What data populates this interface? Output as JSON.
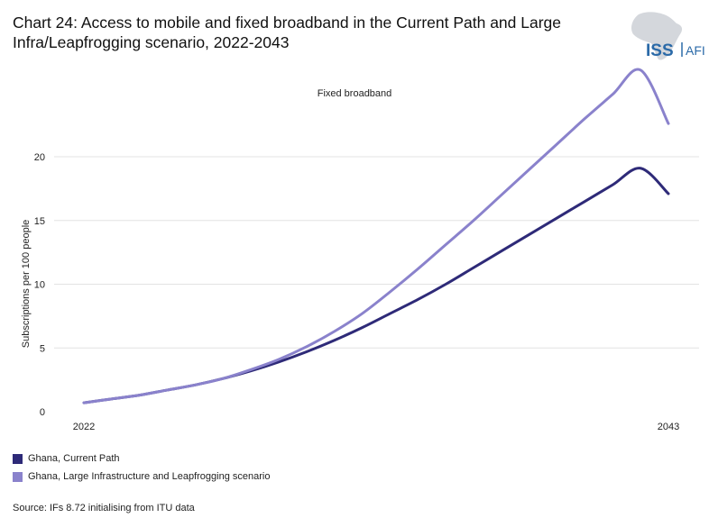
{
  "header": {
    "title": "Chart 24: Access to mobile and fixed broadband in the Current Path and Large Infra/Leapfrogging scenario, 2022-2043"
  },
  "logo": {
    "text_main": "ISS",
    "text_sub": "AFI",
    "color": "#2b6aa8"
  },
  "chart_data": {
    "type": "line",
    "title": "Fixed broadband",
    "xlabel": "",
    "ylabel": "Subscriptions per 100 people",
    "x": [
      2022,
      2023,
      2024,
      2025,
      2026,
      2027,
      2028,
      2029,
      2030,
      2031,
      2032,
      2033,
      2034,
      2035,
      2036,
      2037,
      2038,
      2039,
      2040,
      2041,
      2042,
      2043
    ],
    "xticks": [
      "2022",
      "2043"
    ],
    "yticks": [
      "0",
      "5",
      "10",
      "15",
      "20"
    ],
    "ylim": [
      0,
      23
    ],
    "grid": true,
    "series": [
      {
        "name": "Ghana, Current Path",
        "color": "#2e2a78",
        "values": [
          0.7,
          1.0,
          1.3,
          1.7,
          2.1,
          2.6,
          3.2,
          3.9,
          4.7,
          5.6,
          6.6,
          7.7,
          8.8,
          10.0,
          11.3,
          12.6,
          13.9,
          15.2,
          16.5,
          17.8,
          19.1,
          17.1
        ]
      },
      {
        "name": "Ghana, Large Infrastructure and Leapfrogging scenario",
        "color": "#8a82cc",
        "values": [
          0.7,
          1.0,
          1.3,
          1.7,
          2.1,
          2.6,
          3.3,
          4.1,
          5.1,
          6.3,
          7.7,
          9.4,
          11.2,
          13.1,
          15.0,
          17.0,
          19.0,
          21.0,
          23.0,
          24.9,
          26.8,
          22.6
        ]
      }
    ]
  },
  "source": "Source: IFs 8.72 initialising from ITU data"
}
